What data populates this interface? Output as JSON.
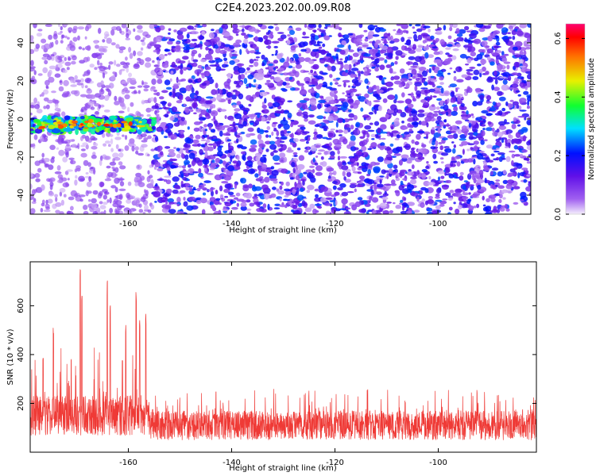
{
  "title": "C2E4.2023.202.00.09.R08",
  "chart_data": [
    {
      "type": "heatmap",
      "xlabel": "Height of straight line (km)",
      "ylabel": "Frequency (Hz)",
      "xlim": [
        -179,
        -82
      ],
      "ylim": [
        -50,
        50
      ],
      "xticks": [
        -160,
        -140,
        -120,
        -100
      ],
      "yticks": [
        -40,
        -20,
        0,
        20,
        40
      ],
      "colorbar": {
        "label": "Normalized spectral amplitude",
        "range": [
          0.0,
          0.65
        ],
        "ticks": [
          0.0,
          0.2,
          0.4,
          0.6
        ],
        "colormap": "rainbow (violet-blue-cyan-green-yellow-red-magenta)"
      },
      "features": [
        {
          "description": "strong band near 0 Hz",
          "x_range": [
            -179,
            -155
          ],
          "y_center": -3,
          "amplitude": 0.6
        },
        {
          "description": "broad noise field",
          "x_range": [
            -155,
            -82
          ],
          "y_range": [
            -50,
            50
          ],
          "amplitude": 0.15
        },
        {
          "description": "sparse noise",
          "x_range": [
            -179,
            -155
          ],
          "y_range": [
            -50,
            50
          ],
          "amplitude": 0.06
        }
      ]
    },
    {
      "type": "line",
      "xlabel": "Height of straight line (km)",
      "ylabel": "SNR (10 * v/v)",
      "xlim": [
        -179,
        -81
      ],
      "ylim": [
        0,
        780
      ],
      "xticks": [
        -160,
        -140,
        -120,
        -100
      ],
      "yticks": [
        200,
        400,
        600
      ],
      "color": "#ef3a36",
      "segments": [
        {
          "x_range": [
            -179,
            -156
          ],
          "baseline": 150,
          "peak": 430
        },
        {
          "x_range": [
            -156,
            -81
          ],
          "baseline": 110,
          "peak": 260
        }
      ],
      "peaks": [
        {
          "x": -176.5,
          "y": 420
        },
        {
          "x": -174.5,
          "y": 530
        },
        {
          "x": -169.3,
          "y": 775
        },
        {
          "x": -169.0,
          "y": 680
        },
        {
          "x": -164.1,
          "y": 710
        },
        {
          "x": -163.5,
          "y": 620
        },
        {
          "x": -160.5,
          "y": 540
        },
        {
          "x": -158.5,
          "y": 680
        },
        {
          "x": -157.8,
          "y": 570
        },
        {
          "x": -156.6,
          "y": 570
        }
      ]
    }
  ]
}
